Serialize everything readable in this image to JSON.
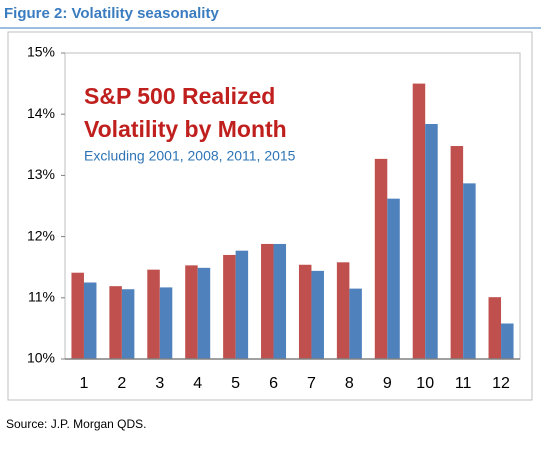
{
  "chart_data": {
    "type": "bar",
    "title": "Figure 2: Volatility seasonality",
    "inset_title": [
      "S&P 500 Realized",
      "Volatility by Month"
    ],
    "inset_subtitle": "Excluding 2001, 2008, 2011, 2015",
    "source": "Source: J.P. Morgan QDS.",
    "categories": [
      "1",
      "2",
      "3",
      "4",
      "5",
      "6",
      "7",
      "8",
      "9",
      "10",
      "11",
      "12"
    ],
    "series": [
      {
        "color": "#c0504d",
        "values": [
          11.41,
          11.19,
          11.46,
          11.53,
          11.7,
          11.88,
          11.54,
          11.58,
          13.27,
          14.5,
          13.48,
          11.01
        ]
      },
      {
        "color": "#4f81bd",
        "values": [
          11.25,
          11.14,
          11.17,
          11.49,
          11.77,
          11.88,
          11.44,
          11.15,
          12.62,
          13.84,
          12.87,
          10.58
        ]
      }
    ],
    "ylim": [
      10,
      15
    ],
    "yticks": [
      {
        "value": 10,
        "label": "10%"
      },
      {
        "value": 11,
        "label": "11%"
      },
      {
        "value": 12,
        "label": "12%"
      },
      {
        "value": 13,
        "label": "13%"
      },
      {
        "value": 14,
        "label": "14%"
      },
      {
        "value": 15,
        "label": "15%"
      }
    ],
    "grid": false
  }
}
